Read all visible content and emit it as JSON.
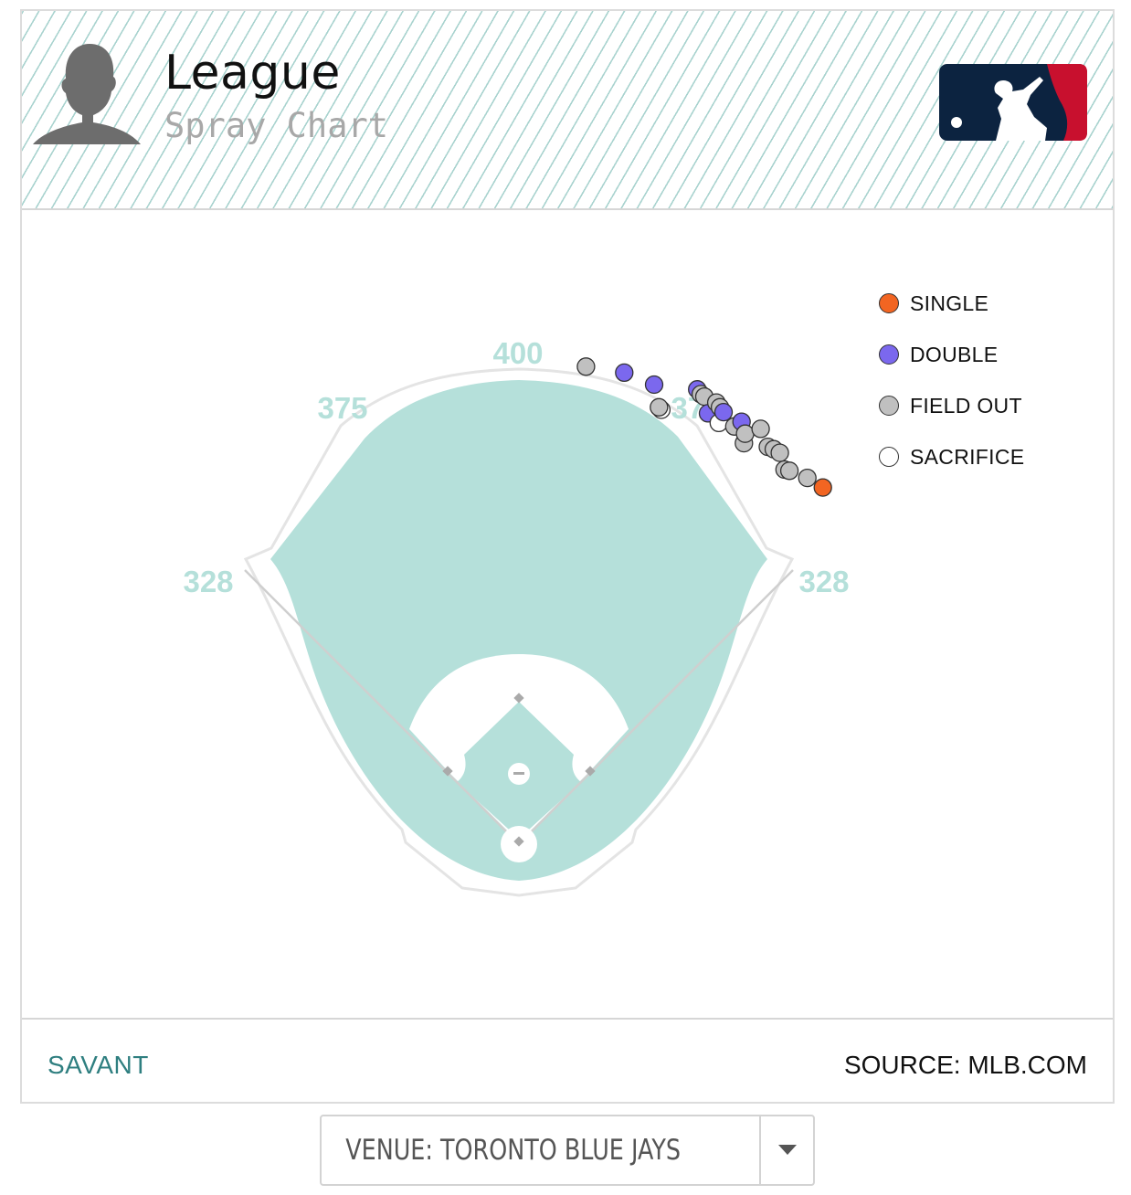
{
  "header": {
    "title": "League",
    "subtitle": "Spray Chart"
  },
  "colors": {
    "accent": "#2f7f80",
    "field": "#b5e0da",
    "single": "#f26522",
    "double": "#7b68ee",
    "field_out": "#c0c0c0",
    "sacrifice": "#ffffff",
    "mlb_blue": "#0c2340",
    "mlb_red": "#c8102e"
  },
  "icons": {
    "avatar": "player-silhouette-icon",
    "logo": "mlb-logo-icon",
    "dropdown": "caret-down-icon"
  },
  "chart_data": {
    "type": "scatter",
    "title": "Spray Chart",
    "fence_distances": {
      "left_line": 328,
      "left_center": 375,
      "center": 400,
      "right_center": 375,
      "right_line": 328
    },
    "legend": [
      {
        "key": "single",
        "label": "SINGLE"
      },
      {
        "key": "double",
        "label": "DOUBLE"
      },
      {
        "key": "field_out",
        "label": "FIELD OUT"
      },
      {
        "key": "sacrifice",
        "label": "SACRIFICE"
      }
    ],
    "points": [
      {
        "x": 56,
        "y": 399,
        "type": "field_out"
      },
      {
        "x": 88,
        "y": 394,
        "type": "double"
      },
      {
        "x": 113,
        "y": 384,
        "type": "double"
      },
      {
        "x": 119,
        "y": 363,
        "type": "sacrifice"
      },
      {
        "x": 117,
        "y": 365,
        "type": "field_out"
      },
      {
        "x": 149,
        "y": 380,
        "type": "double"
      },
      {
        "x": 152,
        "y": 376,
        "type": "field_out"
      },
      {
        "x": 155,
        "y": 374,
        "type": "field_out"
      },
      {
        "x": 158,
        "y": 360,
        "type": "double"
      },
      {
        "x": 165,
        "y": 369,
        "type": "field_out"
      },
      {
        "x": 168,
        "y": 365,
        "type": "field_out"
      },
      {
        "x": 167,
        "y": 352,
        "type": "sacrifice"
      },
      {
        "x": 171,
        "y": 361,
        "type": "double"
      },
      {
        "x": 180,
        "y": 349,
        "type": "field_out"
      },
      {
        "x": 186,
        "y": 353,
        "type": "double"
      },
      {
        "x": 188,
        "y": 335,
        "type": "field_out"
      },
      {
        "x": 189,
        "y": 343,
        "type": "field_out"
      },
      {
        "x": 202,
        "y": 347,
        "type": "field_out"
      },
      {
        "x": 208,
        "y": 332,
        "type": "field_out"
      },
      {
        "x": 213,
        "y": 330,
        "type": "field_out"
      },
      {
        "x": 218,
        "y": 327,
        "type": "field_out"
      },
      {
        "x": 222,
        "y": 313,
        "type": "field_out"
      },
      {
        "x": 226,
        "y": 312,
        "type": "field_out"
      },
      {
        "x": 241,
        "y": 306,
        "type": "field_out"
      },
      {
        "x": 254,
        "y": 298,
        "type": "single"
      }
    ]
  },
  "footer": {
    "savant": "SAVANT",
    "source": "SOURCE: MLB.COM"
  },
  "venue": {
    "label": "VENUE: TORONTO BLUE JAYS"
  }
}
